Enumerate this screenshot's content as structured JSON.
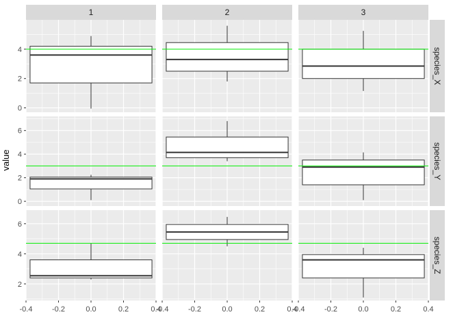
{
  "chart_data": {
    "type": "boxplot",
    "facet_layout": "grid: columns = groups 1-3, rows = species",
    "ylabel": "value",
    "xlabel": "",
    "columns": [
      "1",
      "2",
      "3"
    ],
    "rows": [
      "species_X",
      "species_Y",
      "species_Z"
    ],
    "xlim": [
      -0.4,
      0.4
    ],
    "x_ticks": [
      "-0.4",
      "-0.2",
      "0.0",
      "0.2",
      "0.4"
    ],
    "x_tick_values": [
      -0.4,
      -0.2,
      0,
      0.2,
      0.4
    ],
    "box_x_range": [
      -0.375,
      0.375
    ],
    "rows_scales": [
      {
        "ylim": [
          -0.3,
          6
        ],
        "y_ticks": [
          0,
          2,
          4
        ]
      },
      {
        "ylim": [
          -0.4,
          7.2
        ],
        "y_ticks": [
          0,
          2,
          4,
          6
        ]
      },
      {
        "ylim": [
          0.9,
          6.9
        ],
        "y_ticks": [
          2,
          4,
          6
        ]
      }
    ],
    "reference_lines": [
      {
        "row": "species_X",
        "y": 4.0
      },
      {
        "row": "species_Y",
        "y": 3.0
      },
      {
        "row": "species_Z",
        "y": 4.7
      }
    ],
    "panels": [
      {
        "row": "species_X",
        "col": "1",
        "min": -0.05,
        "q1": 1.7,
        "median": 3.6,
        "q3": 4.2,
        "max": 4.9
      },
      {
        "row": "species_X",
        "col": "2",
        "min": 1.8,
        "q1": 2.5,
        "median": 3.3,
        "q3": 4.45,
        "max": 5.6
      },
      {
        "row": "species_X",
        "col": "3",
        "min": 1.15,
        "q1": 2.0,
        "median": 2.85,
        "q3": 4.0,
        "max": 5.25
      },
      {
        "row": "species_Y",
        "col": "1",
        "min": 0.1,
        "q1": 1.05,
        "median": 1.9,
        "q3": 2.05,
        "max": 2.25
      },
      {
        "row": "species_Y",
        "col": "2",
        "min": 3.4,
        "q1": 3.7,
        "median": 4.15,
        "q3": 5.45,
        "max": 6.8
      },
      {
        "row": "species_Y",
        "col": "3",
        "min": 0.1,
        "q1": 1.4,
        "median": 2.9,
        "q3": 3.5,
        "max": 4.15
      },
      {
        "row": "species_Z",
        "col": "1",
        "min": 2.3,
        "q1": 2.4,
        "median": 2.55,
        "q3": 3.6,
        "max": 4.7
      },
      {
        "row": "species_Z",
        "col": "2",
        "min": 4.5,
        "q1": 4.95,
        "median": 5.45,
        "q3": 5.95,
        "max": 6.45
      },
      {
        "row": "species_Z",
        "col": "3",
        "min": 1.1,
        "q1": 2.4,
        "median": 3.6,
        "q3": 3.95,
        "max": 4.4
      }
    ],
    "colors": {
      "panel_background": "#ebebeb",
      "grid": "#ffffff",
      "strip_background": "#d9d9d9",
      "reference_line": "#00ee00",
      "box_fill": "#ffffff",
      "box_stroke": "#333333"
    },
    "grid": true,
    "legend": "none"
  }
}
